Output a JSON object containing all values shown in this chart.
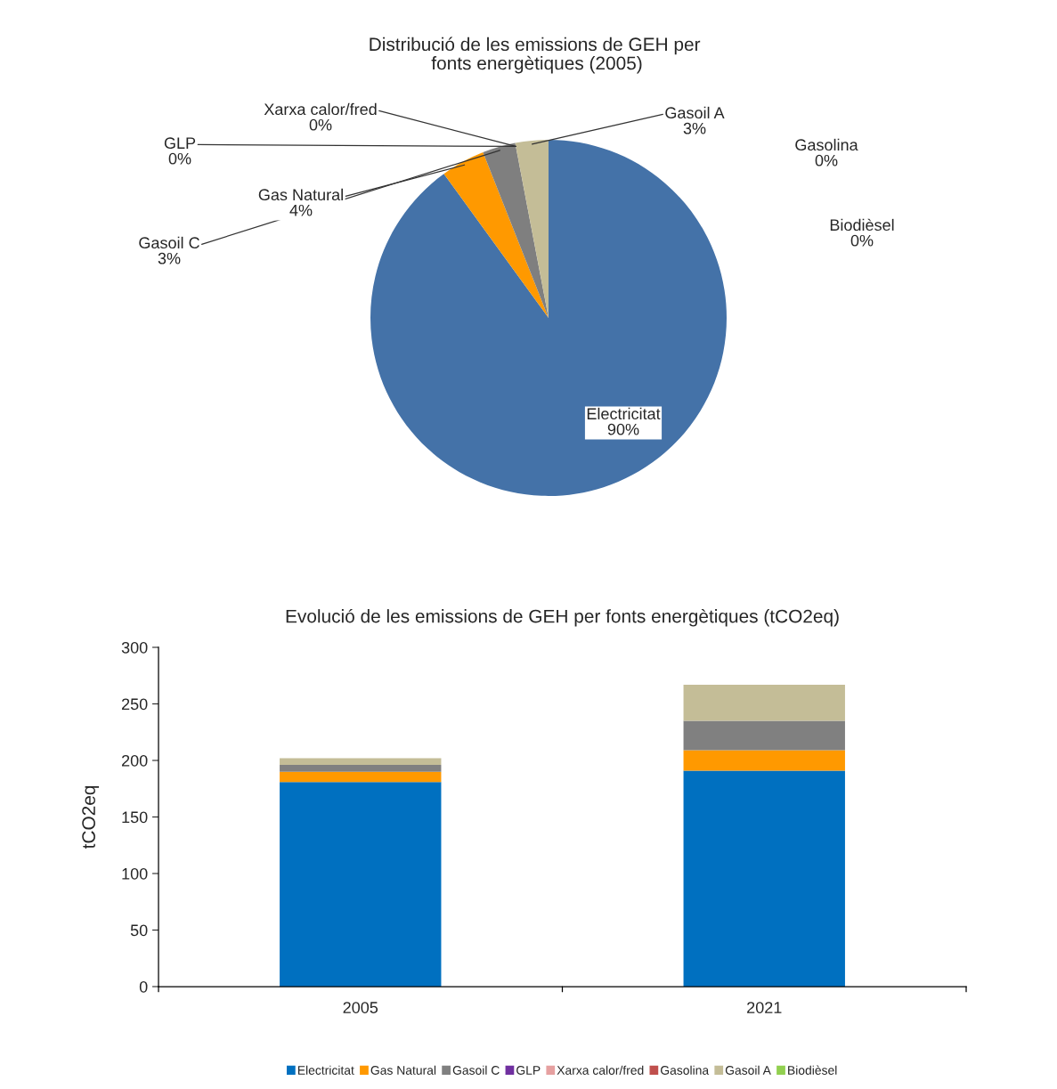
{
  "chart_data": [
    {
      "type": "pie",
      "title": "Distribució de les emissions de GEH per  fonts energètiques (2005)",
      "categories": [
        "Electricitat",
        "Gas Natural",
        "Gasoil C",
        "GLP",
        "Xarxa calor/fred",
        "Gasolina",
        "Gasoil A",
        "Biodièsel"
      ],
      "values": [
        90,
        4,
        3,
        0,
        0,
        0,
        3,
        0
      ],
      "value_labels": [
        "90%",
        "4%",
        "3%",
        "0%",
        "0%",
        "0%",
        "3%",
        "0%"
      ],
      "colors": [
        "#4472a8",
        "#ff9900",
        "#7f7f7f",
        "#7030a0",
        "#e6a0a0",
        "#c0504d",
        "#c4bd97",
        "#92d050"
      ]
    },
    {
      "type": "bar",
      "stacked": true,
      "title": "Evolució de les emissions de GEH per fonts energètiques (tCO2eq)",
      "ylabel": "tCO2eq",
      "categories": [
        "2005",
        "2021"
      ],
      "ylim": [
        0,
        300
      ],
      "yticks": [
        0,
        50,
        100,
        150,
        200,
        250,
        300
      ],
      "legend": "bottom",
      "series": [
        {
          "name": "Electricitat",
          "color": "#0070c0",
          "values": [
            181,
            191
          ]
        },
        {
          "name": "Gas Natural",
          "color": "#ff9900",
          "values": [
            9,
            18
          ]
        },
        {
          "name": "Gasoil C",
          "color": "#808080",
          "values": [
            6,
            26
          ]
        },
        {
          "name": "GLP",
          "color": "#7030a0",
          "values": [
            0,
            0
          ]
        },
        {
          "name": "Xarxa calor/fred",
          "color": "#e6a0a0",
          "values": [
            0,
            0
          ]
        },
        {
          "name": "Gasolina",
          "color": "#c0504d",
          "values": [
            0,
            0
          ]
        },
        {
          "name": "Gasoil A",
          "color": "#c4bd97",
          "values": [
            6,
            32
          ]
        },
        {
          "name": "Biodièsel",
          "color": "#92d050",
          "values": [
            0,
            0
          ]
        }
      ]
    }
  ]
}
